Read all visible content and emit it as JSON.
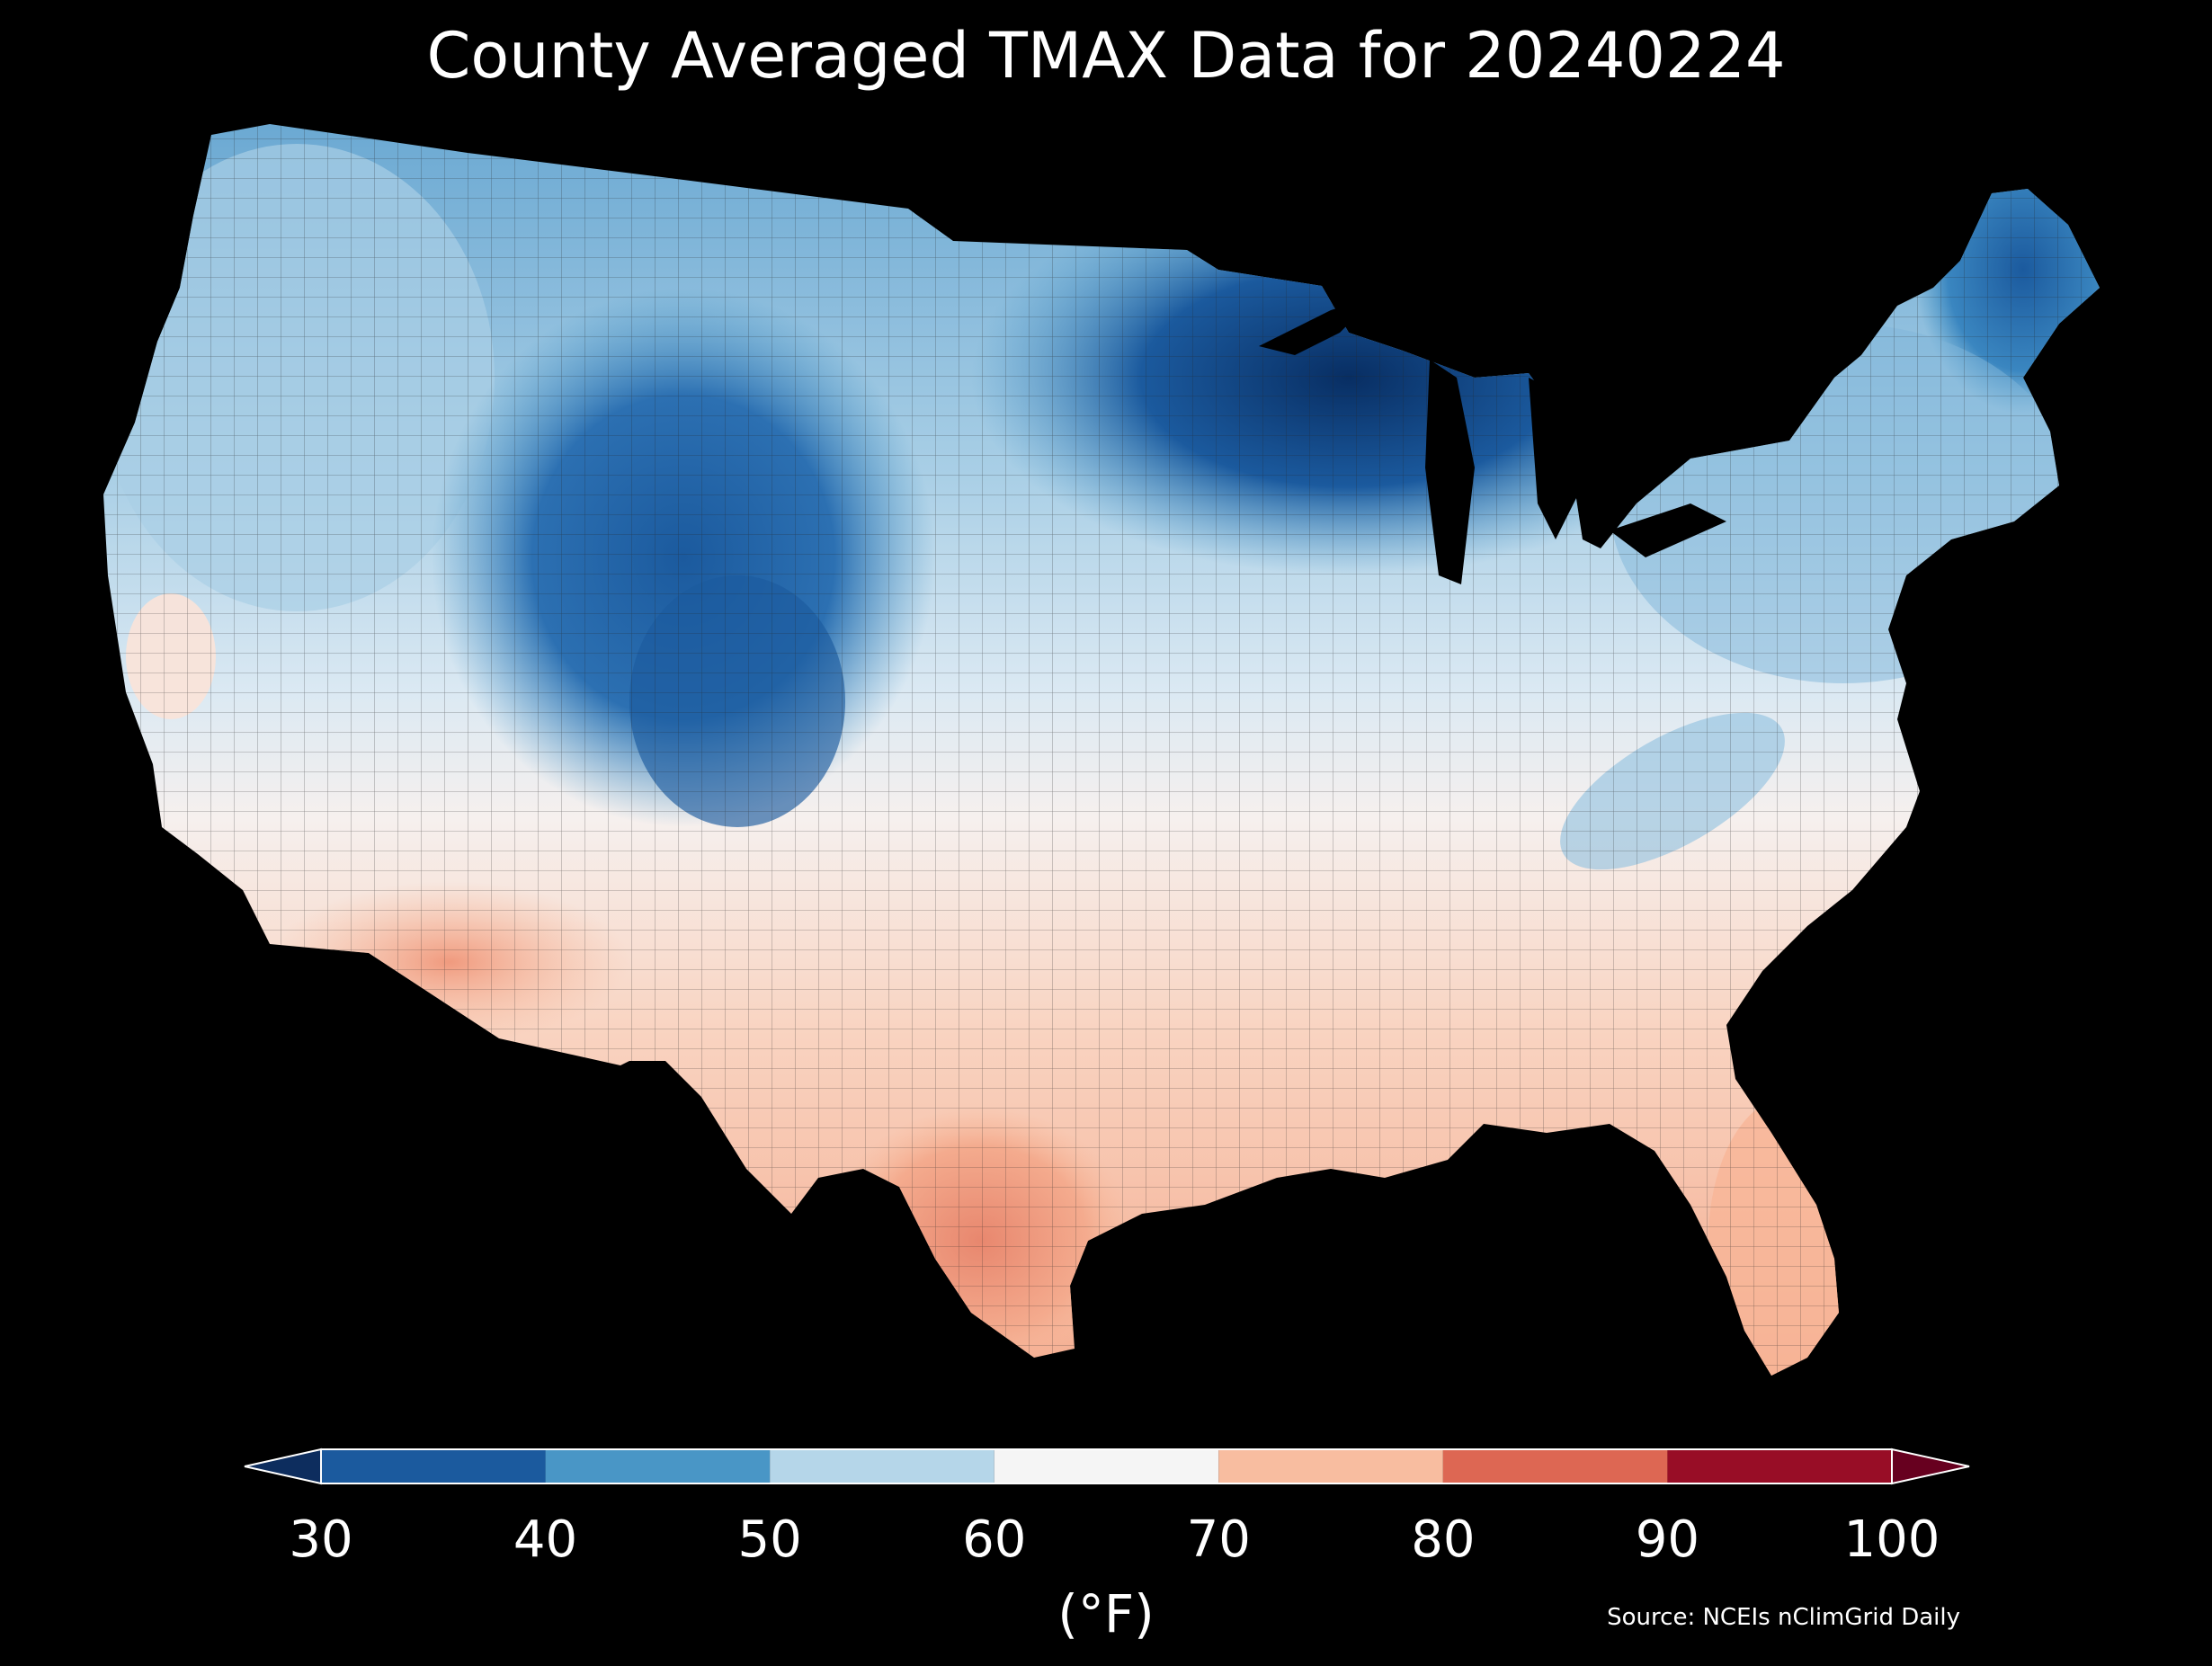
{
  "title": "County Averaged TMAX Data for 20240224",
  "colorbar": {
    "ticks": [
      "30",
      "40",
      "50",
      "60",
      "70",
      "80",
      "90",
      "100"
    ],
    "unit_label": "(°F)",
    "bins": [
      {
        "from": 30,
        "to": 40,
        "color": "#1b5a9e"
      },
      {
        "from": 40,
        "to": 50,
        "color": "#4996c6"
      },
      {
        "from": 50,
        "to": 60,
        "color": "#b5d6e9"
      },
      {
        "from": 60,
        "to": 70,
        "color": "#f5f5f5"
      },
      {
        "from": 70,
        "to": 80,
        "color": "#f8bda0"
      },
      {
        "from": 80,
        "to": 90,
        "color": "#dd6753"
      },
      {
        "from": 90,
        "to": 100,
        "color": "#980d26"
      }
    ],
    "under_color": "#0d2d5e",
    "over_color": "#67001f"
  },
  "source": "Source: NCEIs nClimGrid Daily",
  "map": {
    "background": "#000000",
    "regions": [
      {
        "name": "northern-rockies-cold-core",
        "tmax": 38
      },
      {
        "name": "upper-midwest-cold-core",
        "tmax": 31
      },
      {
        "name": "maine",
        "tmax": 37
      },
      {
        "name": "pacific-northwest",
        "tmax": 55
      },
      {
        "name": "southwest-desert",
        "tmax": 78
      },
      {
        "name": "south-texas",
        "tmax": 84
      },
      {
        "name": "florida",
        "tmax": 76
      },
      {
        "name": "gulf-coast",
        "tmax": 74
      }
    ]
  }
}
